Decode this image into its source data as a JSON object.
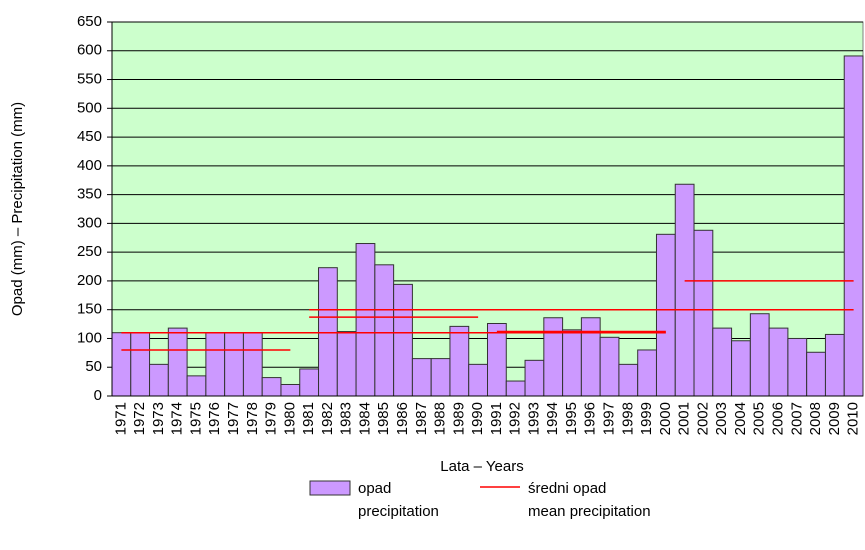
{
  "chart_data": {
    "type": "bar",
    "y_label": "Opad (mm) – Precipitation (mm)",
    "x_label": "Lata – Years",
    "categories": [
      "1971",
      "1972",
      "1973",
      "1974",
      "1975",
      "1976",
      "1977",
      "1978",
      "1979",
      "1980",
      "1981",
      "1982",
      "1983",
      "1984",
      "1985",
      "1986",
      "1987",
      "1988",
      "1989",
      "1990",
      "1991",
      "1992",
      "1993",
      "1994",
      "1995",
      "1996",
      "1997",
      "1998",
      "1999",
      "2000",
      "2001",
      "2002",
      "2003",
      "2004",
      "2005",
      "2006",
      "2007",
      "2008",
      "2009",
      "2010"
    ],
    "series": [
      {
        "name_lines": [
          "opad",
          "precipitation"
        ],
        "color": "#cc99ff",
        "values": [
          110,
          110,
          55,
          118,
          35,
          110,
          110,
          110,
          32,
          20,
          47,
          223,
          112,
          265,
          228,
          194,
          65,
          65,
          121,
          55,
          126,
          26,
          62,
          136,
          115,
          136,
          102,
          55,
          80,
          281,
          368,
          288,
          118,
          96,
          143,
          118,
          100,
          76,
          107,
          591
        ]
      },
      {
        "name_lines": [
          "średni opad",
          "mean precipitation"
        ],
        "color": "#ff0000",
        "segments": [
          {
            "from": "1971",
            "to": "1980",
            "value": 80
          },
          {
            "from": "1971",
            "to": "2000",
            "value": 110
          },
          {
            "from": "1981",
            "to": "1990",
            "value": 137
          },
          {
            "from": "1991",
            "to": "2000",
            "value": 112
          },
          {
            "from": "1981",
            "to": "2010",
            "value": 150
          },
          {
            "from": "2001",
            "to": "2010",
            "value": 200
          }
        ]
      }
    ],
    "ylim": [
      0,
      650
    ],
    "yticks": [
      0,
      50,
      100,
      150,
      200,
      250,
      300,
      350,
      400,
      450,
      500,
      550,
      600,
      650
    ],
    "grid": true,
    "background": "#ccffcc"
  }
}
